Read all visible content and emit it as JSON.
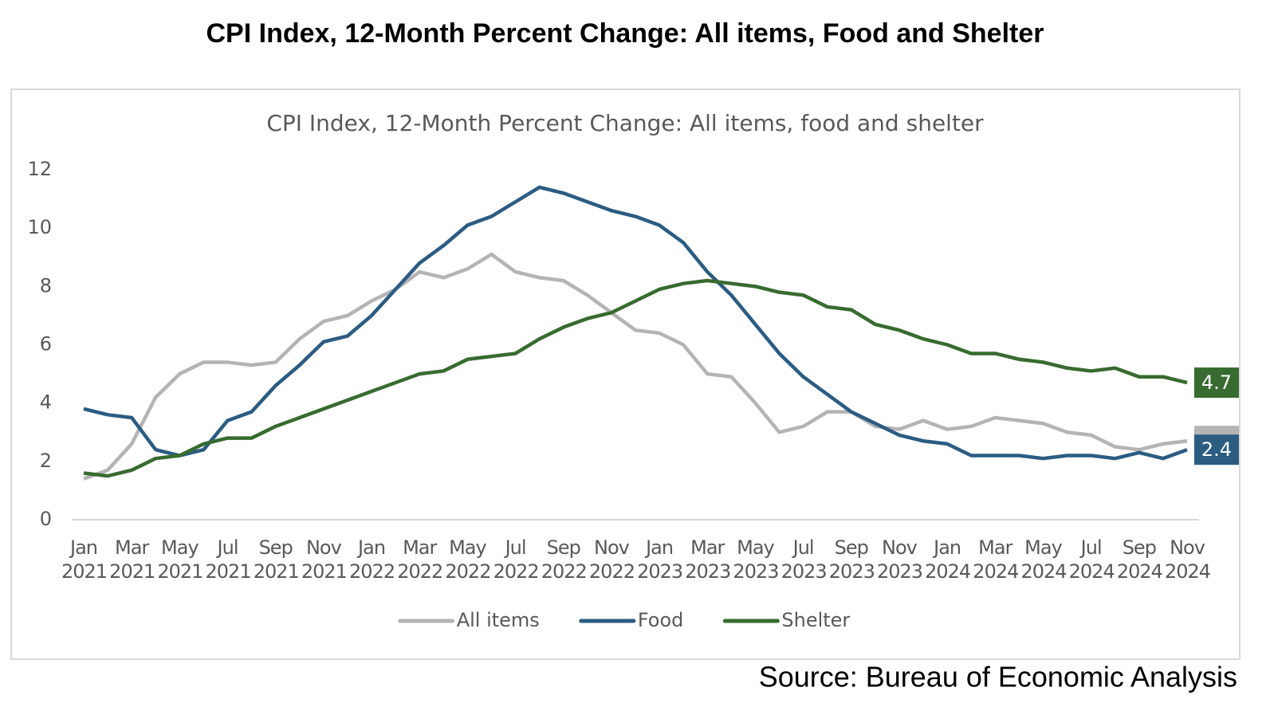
{
  "header": {
    "title": "CPI Index, 12-Month Percent Change: All items, Food and Shelter"
  },
  "chart_data": {
    "type": "line",
    "title": "CPI Index, 12-Month Percent Change: All items, food and shelter",
    "categories": [
      "Jan 2021",
      null,
      "Mar 2021",
      null,
      "May 2021",
      null,
      "Jul 2021",
      null,
      "Sep 2021",
      null,
      "Nov 2021",
      null,
      "Jan 2022",
      null,
      "Mar 2022",
      null,
      "May 2022",
      null,
      "Jul 2022",
      null,
      "Sep 2022",
      null,
      "Nov 2022",
      null,
      "Jan 2023",
      null,
      "Mar 2023",
      null,
      "May 2023",
      null,
      "Jul 2023",
      null,
      "Sep 2023",
      null,
      "Nov 2023",
      null,
      "Jan 2024",
      null,
      "Mar 2024",
      null,
      "May 2024",
      null,
      "Jul 2024",
      null,
      "Sep 2024",
      null,
      "Nov 2024"
    ],
    "series": [
      {
        "name": "All items",
        "color": "#b4b4b4",
        "end_label": false,
        "values": [
          1.4,
          1.7,
          2.6,
          4.2,
          5.0,
          5.4,
          5.4,
          5.3,
          5.4,
          6.2,
          6.8,
          7.0,
          7.5,
          7.9,
          8.5,
          8.3,
          8.6,
          9.1,
          8.5,
          8.3,
          8.2,
          7.7,
          7.1,
          6.5,
          6.4,
          6.0,
          5.0,
          4.9,
          4.0,
          3.0,
          3.2,
          3.7,
          3.7,
          3.2,
          3.1,
          3.4,
          3.1,
          3.2,
          3.5,
          3.4,
          3.3,
          3.0,
          2.9,
          2.5,
          2.4,
          2.6,
          2.7
        ]
      },
      {
        "name": "Food",
        "color": "#2b5c82",
        "end_label": true,
        "values": [
          3.8,
          3.6,
          3.5,
          2.4,
          2.2,
          2.4,
          3.4,
          3.7,
          4.6,
          5.3,
          6.1,
          6.3,
          7.0,
          7.9,
          8.8,
          9.4,
          10.1,
          10.4,
          10.9,
          11.4,
          11.2,
          10.9,
          10.6,
          10.4,
          10.1,
          9.5,
          8.5,
          7.7,
          6.7,
          5.7,
          4.9,
          4.3,
          3.7,
          3.3,
          2.9,
          2.7,
          2.6,
          2.2,
          2.2,
          2.2,
          2.1,
          2.2,
          2.2,
          2.1,
          2.3,
          2.1,
          2.4
        ]
      },
      {
        "name": "Shelter",
        "color": "#376b2f",
        "end_label": true,
        "values": [
          1.6,
          1.5,
          1.7,
          2.1,
          2.2,
          2.6,
          2.8,
          2.8,
          3.2,
          3.5,
          3.8,
          4.1,
          4.4,
          4.7,
          5.0,
          5.1,
          5.5,
          5.6,
          5.7,
          6.2,
          6.6,
          6.9,
          7.1,
          7.5,
          7.9,
          8.1,
          8.2,
          8.1,
          8.0,
          7.8,
          7.7,
          7.3,
          7.2,
          6.7,
          6.5,
          6.2,
          6.0,
          5.7,
          5.7,
          5.5,
          5.4,
          5.2,
          5.1,
          5.2,
          4.9,
          4.9,
          4.7
        ]
      }
    ],
    "ylim": [
      0,
      12
    ],
    "yticks": [
      0,
      2,
      4,
      6,
      8,
      10,
      12
    ],
    "grid": false,
    "legend": "bottom"
  },
  "footer": {
    "source": "Source: Bureau of Economic Analysis"
  }
}
